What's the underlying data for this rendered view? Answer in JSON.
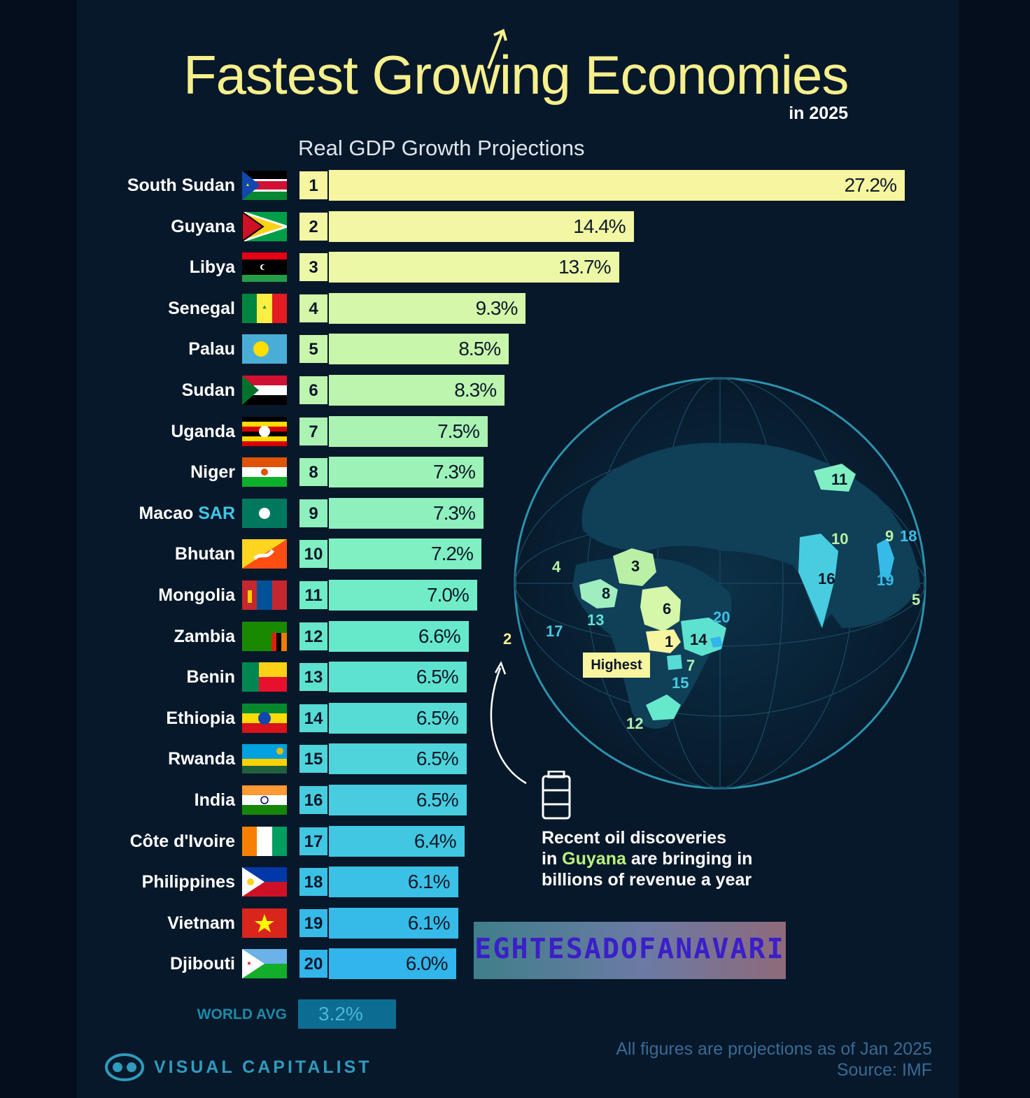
{
  "header": {
    "title": "Fastest Growing Economies",
    "subtitle": "in 2025",
    "section": "Real GDP Growth Projections"
  },
  "chart_data": {
    "type": "bar",
    "orientation": "horizontal",
    "title": "Real GDP Growth Projections",
    "unit": "%",
    "categories": [
      "South Sudan",
      "Guyana",
      "Libya",
      "Senegal",
      "Palau",
      "Sudan",
      "Uganda",
      "Niger",
      "Macao",
      "Bhutan",
      "Mongolia",
      "Zambia",
      "Benin",
      "Ethiopia",
      "Rwanda",
      "India",
      "Côte d'Ivoire",
      "Philippines",
      "Vietnam",
      "Djibouti"
    ],
    "category_suffixes": {
      "Macao": "SAR"
    },
    "ranks": [
      1,
      2,
      3,
      4,
      5,
      6,
      7,
      8,
      9,
      10,
      11,
      12,
      13,
      14,
      15,
      16,
      17,
      18,
      19,
      20
    ],
    "values": [
      27.2,
      14.4,
      13.7,
      9.3,
      8.5,
      8.3,
      7.5,
      7.3,
      7.3,
      7.2,
      7.0,
      6.6,
      6.5,
      6.5,
      6.5,
      6.5,
      6.4,
      6.1,
      6.1,
      6.0
    ],
    "value_labels": [
      "27.2%",
      "14.4%",
      "13.7%",
      "9.3%",
      "8.5%",
      "8.3%",
      "7.5%",
      "7.3%",
      "7.3%",
      "7.2%",
      "7.0%",
      "6.6%",
      "6.5%",
      "6.5%",
      "6.5%",
      "6.5%",
      "6.4%",
      "6.1%",
      "6.1%",
      "6.0%"
    ],
    "bar_colors": [
      "#f8f5a0",
      "#f3f6a3",
      "#ecf8a6",
      "#d4f7a9",
      "#c8f6ab",
      "#bcf5ae",
      "#aaf3b3",
      "#9df2b8",
      "#8ef0bd",
      "#80efc2",
      "#70edc7",
      "#66e8cb",
      "#5ee2d0",
      "#56dbd5",
      "#4ed4da",
      "#47cddf",
      "#41c7e2",
      "#3bc1e6",
      "#36bbe8",
      "#32b5ea"
    ],
    "reference": {
      "label": "WORLD AVG",
      "value": 3.2,
      "value_label": "3.2%"
    },
    "xlim": [
      0,
      27.2
    ],
    "legend": "none",
    "grid": false
  },
  "map": {
    "labels": [
      "1",
      "2",
      "3",
      "4",
      "5",
      "6",
      "7",
      "8",
      "9",
      "10",
      "11",
      "12",
      "13",
      "14",
      "15",
      "16",
      "17",
      "18",
      "19",
      "20"
    ],
    "highest_label": "Highest"
  },
  "callout": {
    "line1": "Recent oil discoveries",
    "line2_pre": "in ",
    "line2_hl": "Guyana",
    "line2_post": " are bringing in",
    "line3": "billions of revenue a year"
  },
  "watermark": "EGHTESADOFANAVARI",
  "brand": "VISUAL CAPITALIST",
  "footer": {
    "note": "All figures are projections as of Jan 2025",
    "source": "Source: IMF"
  }
}
